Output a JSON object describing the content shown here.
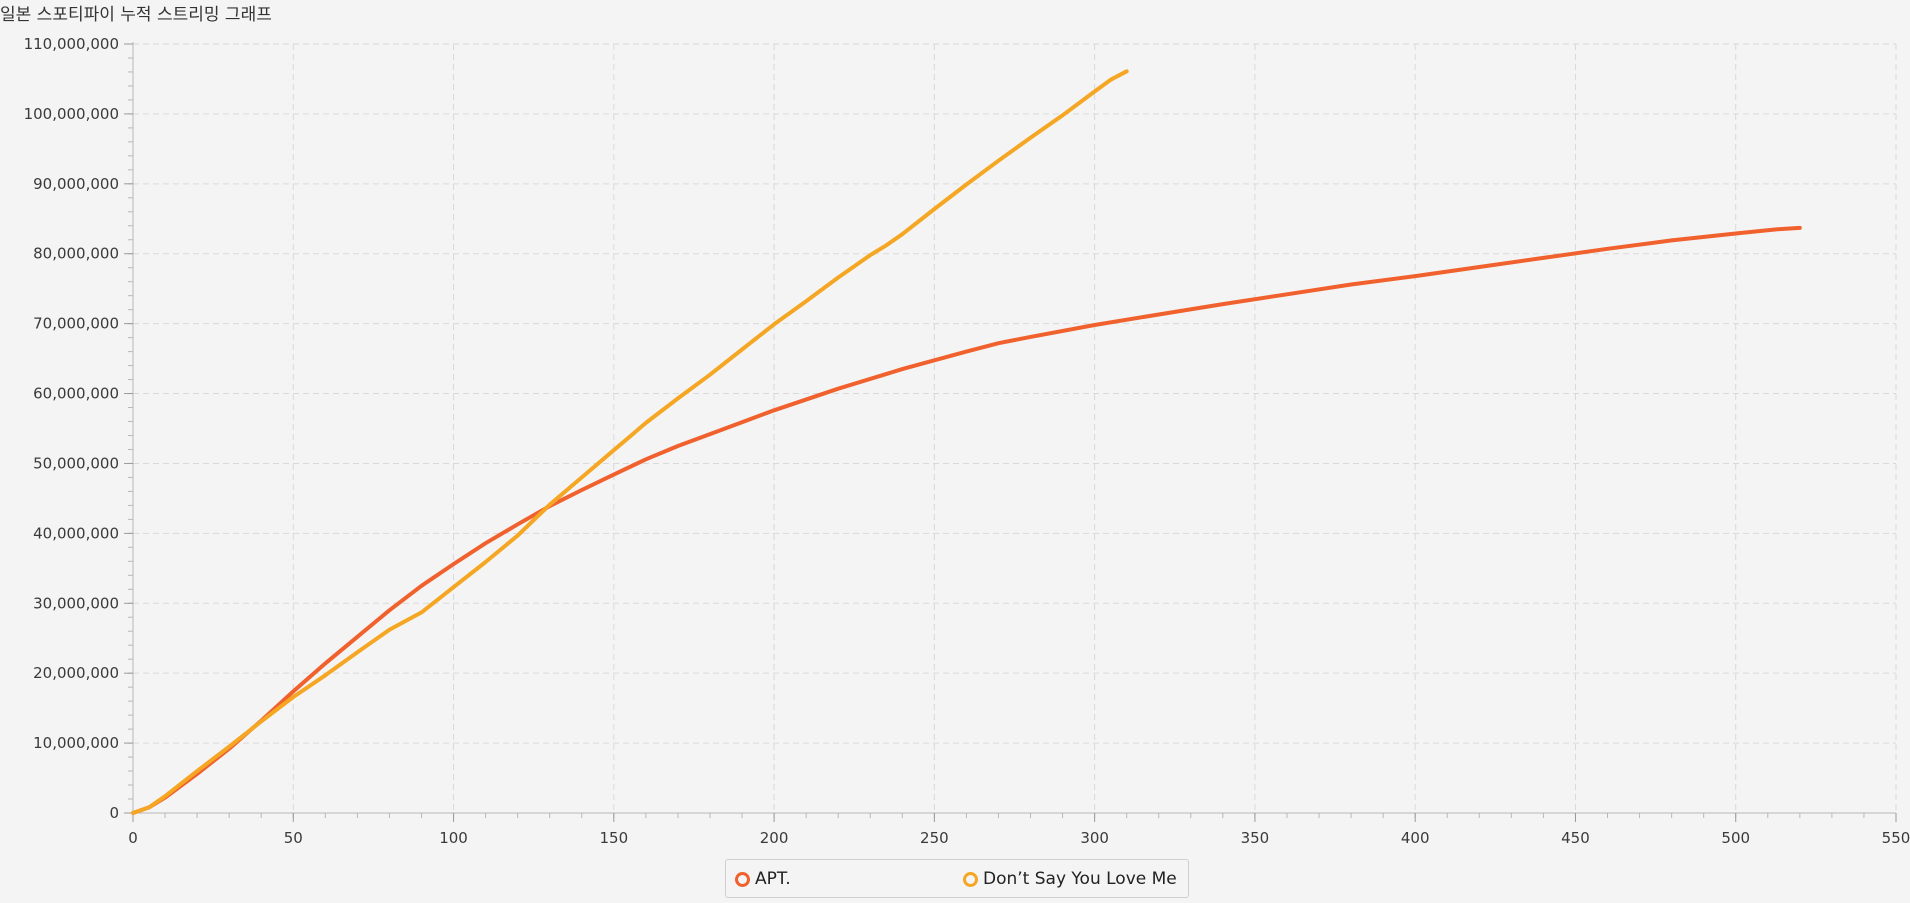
{
  "chart_data": {
    "type": "line",
    "title": "일본 스포티파이 누적 스트리밍 그래프",
    "xlabel": "",
    "ylabel": "",
    "xlim": [
      0,
      550
    ],
    "ylim": [
      0,
      110000000
    ],
    "x_ticks": [
      "0",
      "50",
      "100",
      "150",
      "200",
      "250",
      "300",
      "350",
      "400",
      "450",
      "500",
      "550"
    ],
    "y_ticks": [
      "0",
      "10,000,000",
      "20,000,000",
      "30,000,000",
      "40,000,000",
      "50,000,000",
      "60,000,000",
      "70,000,000",
      "80,000,000",
      "90,000,000",
      "100,000,000",
      "110,000,000"
    ],
    "grid": true,
    "legend_position": "bottom",
    "series": [
      {
        "name": "APT.",
        "color": "#f0612d",
        "points": [
          [
            0,
            0
          ],
          [
            5,
            800000
          ],
          [
            10,
            2200000
          ],
          [
            20,
            5600000
          ],
          [
            30,
            9200000
          ],
          [
            40,
            13200000
          ],
          [
            50,
            17400000
          ],
          [
            60,
            21400000
          ],
          [
            70,
            25200000
          ],
          [
            80,
            29000000
          ],
          [
            90,
            32500000
          ],
          [
            100,
            35600000
          ],
          [
            110,
            38600000
          ],
          [
            120,
            41300000
          ],
          [
            130,
            43900000
          ],
          [
            140,
            46200000
          ],
          [
            150,
            48400000
          ],
          [
            160,
            50600000
          ],
          [
            170,
            52500000
          ],
          [
            180,
            54200000
          ],
          [
            190,
            55900000
          ],
          [
            200,
            57600000
          ],
          [
            220,
            60700000
          ],
          [
            240,
            63500000
          ],
          [
            260,
            66000000
          ],
          [
            270,
            67200000
          ],
          [
            280,
            68100000
          ],
          [
            300,
            69800000
          ],
          [
            320,
            71300000
          ],
          [
            340,
            72800000
          ],
          [
            360,
            74200000
          ],
          [
            380,
            75600000
          ],
          [
            400,
            76800000
          ],
          [
            420,
            78100000
          ],
          [
            440,
            79400000
          ],
          [
            460,
            80700000
          ],
          [
            480,
            81900000
          ],
          [
            500,
            82900000
          ],
          [
            513,
            83500000
          ],
          [
            520,
            83700000
          ]
        ]
      },
      {
        "name": "Don’t Say You Love Me",
        "color": "#f5a623",
        "points": [
          [
            0,
            0
          ],
          [
            5,
            800000
          ],
          [
            10,
            2400000
          ],
          [
            20,
            6000000
          ],
          [
            30,
            9500000
          ],
          [
            40,
            13100000
          ],
          [
            50,
            16600000
          ],
          [
            60,
            19700000
          ],
          [
            70,
            23000000
          ],
          [
            80,
            26200000
          ],
          [
            90,
            28700000
          ],
          [
            100,
            32300000
          ],
          [
            110,
            35900000
          ],
          [
            120,
            39700000
          ],
          [
            130,
            44100000
          ],
          [
            140,
            48000000
          ],
          [
            150,
            51900000
          ],
          [
            160,
            55800000
          ],
          [
            170,
            59300000
          ],
          [
            180,
            62700000
          ],
          [
            190,
            66300000
          ],
          [
            200,
            69900000
          ],
          [
            210,
            73200000
          ],
          [
            220,
            76600000
          ],
          [
            230,
            79800000
          ],
          [
            235,
            81200000
          ],
          [
            240,
            82800000
          ],
          [
            250,
            86400000
          ],
          [
            260,
            89900000
          ],
          [
            270,
            93300000
          ],
          [
            280,
            96600000
          ],
          [
            290,
            99800000
          ],
          [
            300,
            103200000
          ],
          [
            305,
            104900000
          ],
          [
            310,
            106100000
          ]
        ]
      }
    ]
  }
}
